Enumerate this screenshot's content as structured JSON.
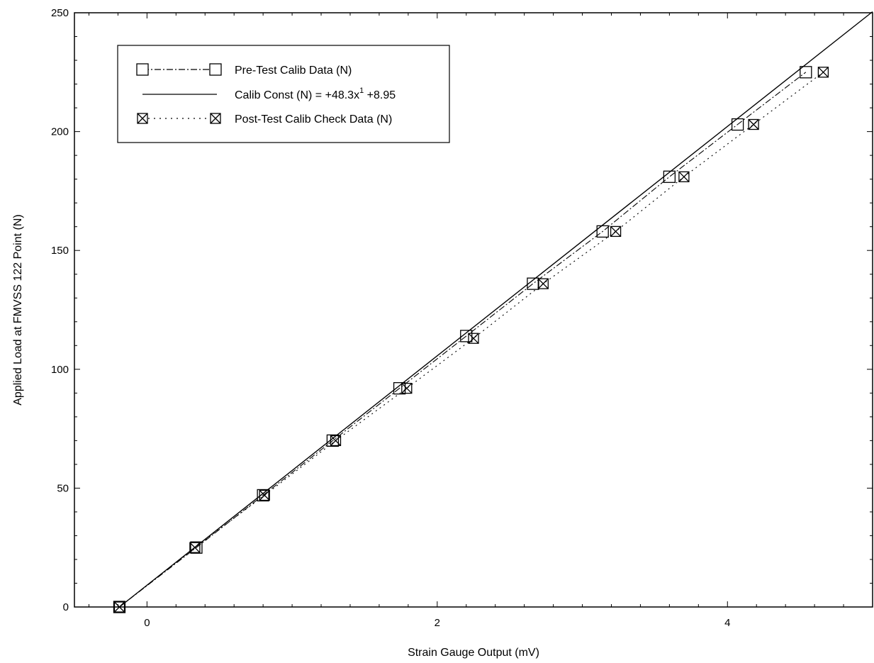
{
  "chart_data": {
    "type": "scatter",
    "title": "",
    "xlabel": "Strain Gauge Output (mV)",
    "ylabel": "Applied Load at FMVSS 122 Point (N)",
    "xlim": [
      -0.5,
      5.0
    ],
    "ylim": [
      0,
      250
    ],
    "xticks": [
      "0",
      "2",
      "4"
    ],
    "yticks": [
      "0",
      "50",
      "100",
      "150",
      "200",
      "250"
    ],
    "grid": false,
    "legend_position": "top-left",
    "fit": {
      "slope": 48.3,
      "intercept": 8.95
    },
    "series": [
      {
        "name": "Pre-Test Calib Data (N)",
        "style": "dash-dot",
        "marker": "open-square",
        "color": "#000000",
        "x": [
          -0.19,
          0.34,
          0.8,
          1.28,
          1.74,
          2.2,
          2.66,
          3.14,
          3.6,
          4.07,
          4.54
        ],
        "y": [
          0,
          25,
          47,
          70,
          92,
          114,
          136,
          158,
          181,
          203,
          225
        ]
      },
      {
        "name": "Calib Const (N) = +48.3x",
        "name_sup": "1",
        "name_tail": " +8.95",
        "style": "solid",
        "marker": "none",
        "color": "#000000",
        "x": [
          -0.19,
          5.0
        ],
        "y": [
          0,
          250.45
        ]
      },
      {
        "name": "Post-Test Calib Check Data (N)",
        "style": "dotted",
        "marker": "crossed-square",
        "color": "#000000",
        "x": [
          -0.19,
          0.33,
          0.81,
          1.3,
          1.79,
          2.25,
          2.73,
          3.23,
          3.7,
          4.18,
          4.66
        ],
        "y": [
          0,
          25,
          47,
          70,
          92,
          113,
          136,
          158,
          181,
          203,
          225
        ]
      }
    ]
  }
}
